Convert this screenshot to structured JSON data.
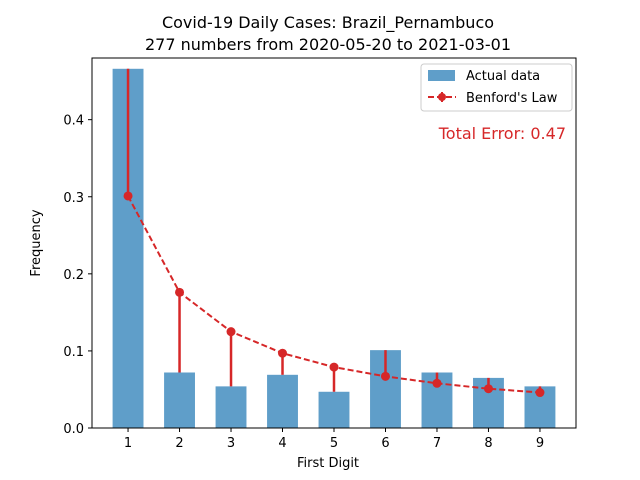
{
  "chart_data": {
    "type": "bar",
    "title_line1": "Covid-19 Daily Cases: Brazil_Pernambuco",
    "title_line2": "277 numbers from 2020-05-20 to 2021-03-01",
    "xlabel": "First Digit",
    "ylabel": "Frequency",
    "categories": [
      "1",
      "2",
      "3",
      "4",
      "5",
      "6",
      "7",
      "8",
      "9"
    ],
    "x": [
      1,
      2,
      3,
      4,
      5,
      6,
      7,
      8,
      9
    ],
    "ylim": [
      0,
      0.48
    ],
    "yticks": [
      0.0,
      0.1,
      0.2,
      0.3,
      0.4
    ],
    "ytick_labels": [
      "0.0",
      "0.1",
      "0.2",
      "0.3",
      "0.4"
    ],
    "series": [
      {
        "name": "Actual data",
        "type": "bar",
        "color": "#5f9ec9",
        "values": [
          0.466,
          0.072,
          0.054,
          0.069,
          0.047,
          0.101,
          0.072,
          0.065,
          0.054
        ]
      },
      {
        "name": "Benford's Law",
        "type": "line",
        "color": "#d62728",
        "values": [
          0.301,
          0.176,
          0.125,
          0.097,
          0.079,
          0.067,
          0.058,
          0.051,
          0.046
        ]
      }
    ],
    "annotation": "Total Error: 0.47",
    "annotation_color": "#d62728",
    "legend_position": "top-right",
    "grid": false
  }
}
